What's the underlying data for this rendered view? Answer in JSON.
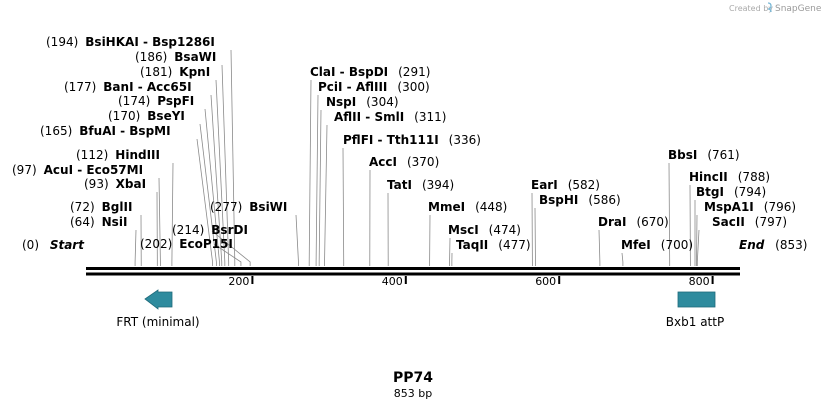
{
  "brand": {
    "created_by": "Created by",
    "name": "SnapGene"
  },
  "title": "PP74",
  "subtitle": "853 bp",
  "sequence_length": 853,
  "ticks": [
    200,
    400,
    600,
    800
  ],
  "start_label": {
    "pos": "(0)",
    "name": "Start"
  },
  "end_label": {
    "name": "End",
    "pos": "(853)"
  },
  "sites": [
    {
      "pos": "(64)",
      "name": "NsiI",
      "bp": 64
    },
    {
      "pos": "(72)",
      "name": "BglII",
      "bp": 72
    },
    {
      "pos": "(93)",
      "name": "XbaI",
      "bp": 93
    },
    {
      "pos": "(97)",
      "name": "AcuI - Eco57MI",
      "bp": 97
    },
    {
      "pos": "(112)",
      "name": "HindIII",
      "bp": 112
    },
    {
      "pos": "(165)",
      "name": "BfuAI - BspMI",
      "bp": 165
    },
    {
      "pos": "(170)",
      "name": "BseYI",
      "bp": 170
    },
    {
      "pos": "(174)",
      "name": "PspFI",
      "bp": 174
    },
    {
      "pos": "(177)",
      "name": "BanI - Acc65I",
      "bp": 177
    },
    {
      "pos": "(181)",
      "name": "KpnI",
      "bp": 181
    },
    {
      "pos": "(186)",
      "name": "BsaWI",
      "bp": 186
    },
    {
      "pos": "(194)",
      "name": "BsiHKAI - Bsp1286I",
      "bp": 194
    },
    {
      "pos": "(202)",
      "name": "EcoP15I",
      "bp": 202
    },
    {
      "pos": "(214)",
      "name": "BsrDI",
      "bp": 214
    },
    {
      "pos": "(277)",
      "name": "BsiWI",
      "bp": 277
    },
    {
      "pos": "(291)",
      "name": "ClaI - BspDI",
      "bp": 291
    },
    {
      "pos": "(300)",
      "name": "PciI - AflIII",
      "bp": 300
    },
    {
      "pos": "(304)",
      "name": "NspI",
      "bp": 304
    },
    {
      "pos": "(311)",
      "name": "AflII - SmlI",
      "bp": 311
    },
    {
      "pos": "(336)",
      "name": "PflFI - Tth111I",
      "bp": 336
    },
    {
      "pos": "(370)",
      "name": "AccI",
      "bp": 370
    },
    {
      "pos": "(394)",
      "name": "TatI",
      "bp": 394
    },
    {
      "pos": "(448)",
      "name": "MmeI",
      "bp": 448
    },
    {
      "pos": "(474)",
      "name": "MscI",
      "bp": 474
    },
    {
      "pos": "(477)",
      "name": "TaqII",
      "bp": 477
    },
    {
      "pos": "(582)",
      "name": "EarI",
      "bp": 582
    },
    {
      "pos": "(586)",
      "name": "BspHI",
      "bp": 586
    },
    {
      "pos": "(670)",
      "name": "DraI",
      "bp": 670
    },
    {
      "pos": "(700)",
      "name": "MfeI",
      "bp": 700
    },
    {
      "pos": "(761)",
      "name": "BbsI",
      "bp": 761
    },
    {
      "pos": "(788)",
      "name": "HincII",
      "bp": 788
    },
    {
      "pos": "(794)",
      "name": "BtgI",
      "bp": 794
    },
    {
      "pos": "(796)",
      "name": "MspA1I",
      "bp": 796
    },
    {
      "pos": "(797)",
      "name": "SacII",
      "bp": 797
    }
  ],
  "features": [
    {
      "name": "FRT (minimal)",
      "direction": "reverse",
      "color": "#2e8b9e"
    },
    {
      "name": "Bxb1 attP",
      "direction": "forward",
      "color": "#2e8b9e"
    }
  ]
}
